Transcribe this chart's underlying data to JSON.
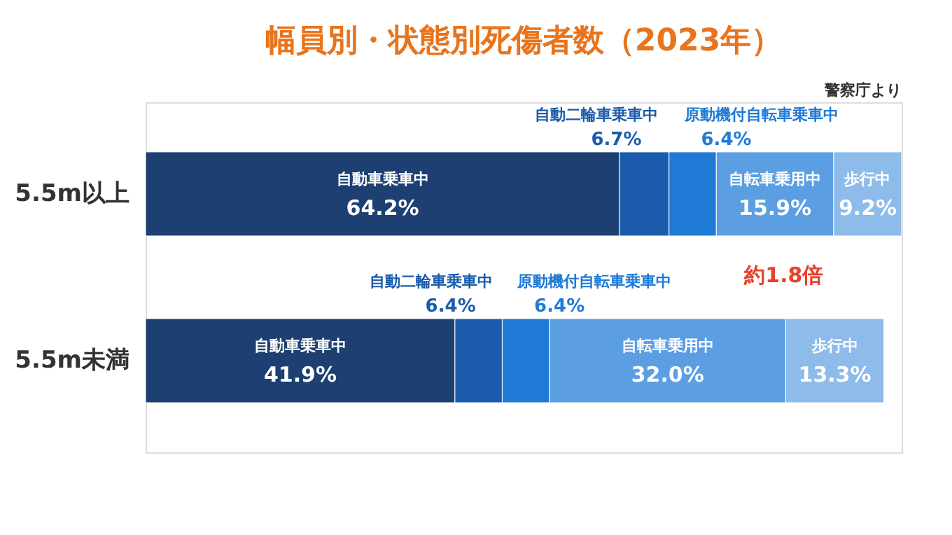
{
  "chart_data": {
    "type": "bar",
    "orientation": "horizontal",
    "stacked": true,
    "title": "幅員別・状態別死傷者数（2023年）",
    "categories": [
      "5.5m以上",
      "5.5m未満"
    ],
    "series": [
      {
        "name": "自動車乗車中",
        "color": "#1d3f72",
        "values": [
          64.2,
          41.9
        ],
        "value_labels": [
          "64.2%",
          "41.9%"
        ]
      },
      {
        "name": "自動二輪車乗車中",
        "color": "#1a5cab",
        "values": [
          6.7,
          6.4
        ],
        "value_labels": [
          "6.7%",
          "6.4%"
        ]
      },
      {
        "name": "原動機付自転車乗車中",
        "color": "#1f7ad6",
        "values": [
          6.4,
          6.4
        ],
        "value_labels": [
          "6.4%",
          "6.4%"
        ]
      },
      {
        "name": "自転車乗用中",
        "color": "#5b9fe2",
        "values": [
          15.9,
          32.0
        ],
        "value_labels": [
          "15.9%",
          "32.0%"
        ]
      },
      {
        "name": "歩行中",
        "color": "#8dbbea",
        "values": [
          9.2,
          13.3
        ],
        "value_labels": [
          "9.2%",
          "13.3%"
        ]
      }
    ],
    "tick_labels": "y",
    "annotations": [
      "約1.8倍",
      "警察庁より"
    ]
  }
}
